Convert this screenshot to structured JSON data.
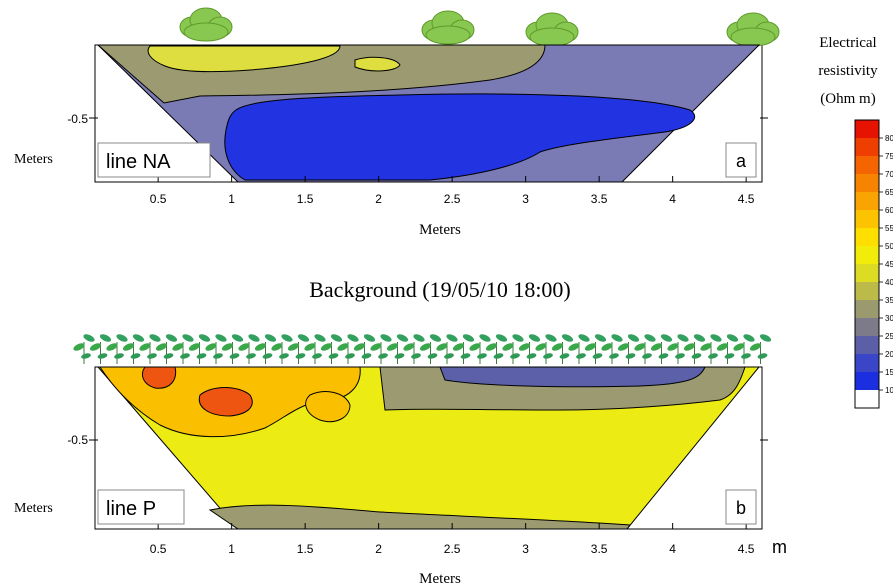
{
  "figure": {
    "title": "Background (19/05/10 18:00)",
    "colorbar": {
      "label_lines": [
        "Electrical",
        "resistivity",
        "(Ohm m)"
      ],
      "ticks": [
        10,
        15,
        20,
        25,
        30,
        35,
        40,
        45,
        50,
        55,
        60,
        65,
        70,
        75,
        80
      ],
      "colors": [
        "#1c2fe0",
        "#3a45c8",
        "#5a5fa8",
        "#7d7a8a",
        "#9b9a6e",
        "#bcbb4a",
        "#dcdc22",
        "#f1ec0a",
        "#ffdf00",
        "#fcc400",
        "#f9a400",
        "#f78400",
        "#f46400",
        "#ef3f00",
        "#e61300"
      ]
    }
  },
  "chart_data": [
    {
      "type": "heatmap",
      "panel_label": "a",
      "line_label": "line NA",
      "xlabel": "Meters",
      "ylabel": "Meters",
      "x_ticks": [
        "0.5",
        "1",
        "1.5",
        "2",
        "2.5",
        "3",
        "3.5",
        "4",
        "4.5"
      ],
      "y_ticks": [
        "-0.5"
      ],
      "xlim": [
        0.05,
        4.55
      ],
      "surface": "shrubs",
      "zones": [
        {
          "resistivity": 18,
          "color": "#7a7ab4",
          "desc": "background"
        },
        {
          "resistivity": 12,
          "color": "#2233e2",
          "desc": "deep conductive body"
        },
        {
          "resistivity": 28,
          "color": "#9c9a70",
          "desc": "near-surface"
        },
        {
          "resistivity": 38,
          "color": "#dede40",
          "desc": "shallow resistive"
        }
      ]
    },
    {
      "type": "heatmap",
      "panel_label": "b",
      "line_label": "line P",
      "xlabel": "Meters",
      "ylabel": "Meters",
      "x_unit": "m",
      "x_ticks": [
        "0.5",
        "1",
        "1.5",
        "2",
        "2.5",
        "3",
        "3.5",
        "4",
        "4.5"
      ],
      "y_ticks": [
        "-0.5"
      ],
      "xlim": [
        0.05,
        4.55
      ],
      "surface": "seedlings",
      "zones": [
        {
          "resistivity": 45,
          "color": "#ecec14",
          "desc": "background"
        },
        {
          "resistivity": 30,
          "color": "#9c9a70",
          "desc": "near-surface right"
        },
        {
          "resistivity": 18,
          "color": "#5c60a8",
          "desc": "shallow conductive"
        },
        {
          "resistivity": 55,
          "color": "#fac000",
          "desc": "shallow resistive"
        },
        {
          "resistivity": 70,
          "color": "#ee5510",
          "desc": "resistive core"
        }
      ]
    }
  ]
}
